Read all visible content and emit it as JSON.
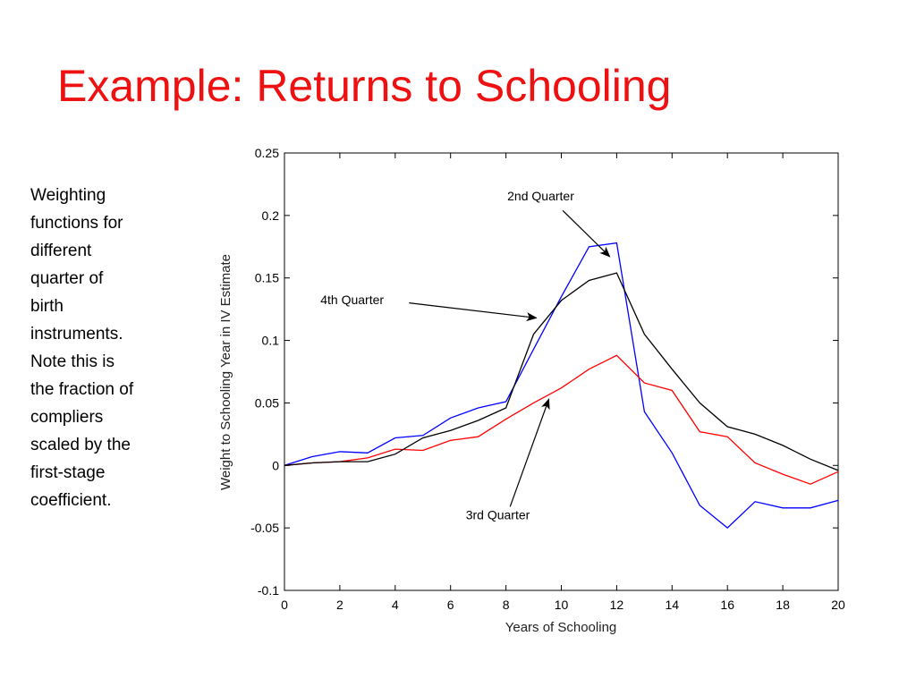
{
  "slide": {
    "title": "Example: Returns to Schooling",
    "note_lines": [
      "Weighting",
      "functions for",
      "different",
      "quarter of",
      "birth",
      "instruments.",
      "Note this is",
      "the fraction of",
      "compliers",
      "scaled by the",
      "first-stage",
      "coefficient."
    ]
  },
  "chart_data": {
    "type": "line",
    "title": "",
    "xlabel": "Years of Schooling",
    "ylabel": "Weight to Schooling Year in IV Estimate",
    "xlim": [
      0,
      20
    ],
    "ylim": [
      -0.1,
      0.25
    ],
    "x_ticks": [
      0,
      2,
      4,
      6,
      8,
      10,
      12,
      14,
      16,
      18,
      20
    ],
    "x_tick_labels": [
      "0",
      "2",
      "4",
      "6",
      "8",
      "10",
      "12",
      "14",
      "16",
      "18",
      "20"
    ],
    "y_ticks": [
      -0.1,
      -0.05,
      0,
      0.05,
      0.1,
      0.15,
      0.2,
      0.25
    ],
    "y_tick_labels": [
      "-0.1",
      "-0.05",
      "0",
      "0.05",
      "0.1",
      "0.15",
      "0.2",
      "0.25"
    ],
    "grid": false,
    "legend": "none",
    "x": [
      0,
      1,
      2,
      3,
      4,
      5,
      6,
      7,
      8,
      9,
      10,
      11,
      12,
      13,
      14,
      15,
      16,
      17,
      18,
      19,
      20
    ],
    "series": [
      {
        "name": "2nd Quarter",
        "color": "#0000ff",
        "values": [
          0.0,
          0.007,
          0.011,
          0.01,
          0.022,
          0.024,
          0.038,
          0.046,
          0.051,
          0.093,
          0.135,
          0.175,
          0.178,
          0.043,
          0.01,
          -0.032,
          -0.05,
          -0.029,
          -0.034,
          -0.034,
          -0.028
        ]
      },
      {
        "name": "3rd Quarter",
        "color": "#ff0000",
        "values": [
          0.0,
          0.002,
          0.003,
          0.006,
          0.013,
          0.012,
          0.02,
          0.023,
          0.037,
          0.05,
          0.062,
          0.077,
          0.088,
          0.066,
          0.06,
          0.027,
          0.023,
          0.002,
          -0.007,
          -0.015,
          -0.005
        ]
      },
      {
        "name": "4th Quarter",
        "color": "#000000",
        "values": [
          0.0,
          0.002,
          0.003,
          0.003,
          0.009,
          0.022,
          0.028,
          0.036,
          0.046,
          0.105,
          0.132,
          0.148,
          0.154,
          0.105,
          0.077,
          0.05,
          0.031,
          0.025,
          0.016,
          0.005,
          -0.004
        ]
      }
    ],
    "annotations": [
      {
        "text": "2nd Quarter",
        "series": "2nd Quarter",
        "text_at": [
          8.05,
          0.212
        ],
        "tail": [
          10.05,
          0.204
        ],
        "head": [
          11.75,
          0.167
        ]
      },
      {
        "text": "4th Quarter",
        "series": "4th Quarter",
        "text_at": [
          1.3,
          0.129
        ],
        "tail": [
          4.5,
          0.13
        ],
        "head": [
          9.1,
          0.118
        ]
      },
      {
        "text": "3rd Quarter",
        "series": "3rd Quarter",
        "text_at": [
          6.55,
          -0.043
        ],
        "tail": [
          8.15,
          -0.033
        ],
        "head": [
          9.55,
          0.053
        ]
      }
    ],
    "frame_color": "#000000"
  }
}
